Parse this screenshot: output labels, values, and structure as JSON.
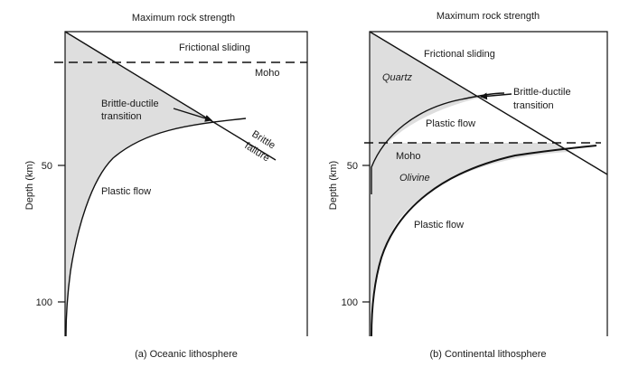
{
  "panel_a": {
    "header": "Maximum rock strength",
    "ylabel": "Depth (km)",
    "tick_50": "50",
    "tick_100": "100",
    "frictional_sliding": "Frictional sliding",
    "moho": "Moho",
    "brittle_ductile_line1": "Brittle-ductile",
    "brittle_ductile_line2": "transition",
    "brittle_failure_line1": "Brittle",
    "brittle_failure_line2": "failure",
    "plastic_flow": "Plastic flow",
    "caption": "(a) Oceanic lithosphere"
  },
  "panel_b": {
    "header": "Maximum rock strength",
    "ylabel": "Depth (km)",
    "tick_50": "50",
    "tick_100": "100",
    "frictional_sliding": "Frictional sliding",
    "quartz": "Quartz",
    "brittle_ductile_line1": "Brittle-ductile",
    "brittle_ductile_line2": "transition",
    "plastic_flow_upper": "Plastic flow",
    "moho": "Moho",
    "olivine": "Olivine",
    "plastic_flow_lower": "Plastic flow",
    "caption": "(b) Continental lithosphere"
  }
}
